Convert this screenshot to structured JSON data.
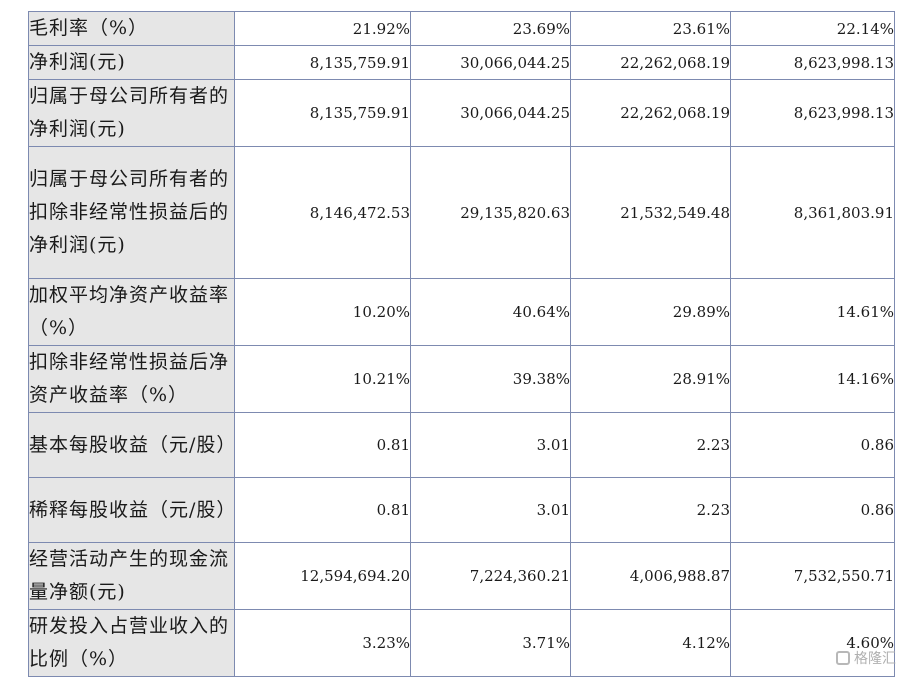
{
  "rows": [
    {
      "label": "毛利率（%）",
      "values": [
        "21.92%",
        "23.69%",
        "23.61%",
        "22.14%"
      ]
    },
    {
      "label": "净利润(元)",
      "values": [
        "8,135,759.91",
        "30,066,044.25",
        "22,262,068.19",
        "8,623,998.13"
      ]
    },
    {
      "label": "归属于母公司所有者的净利润(元)",
      "values": [
        "8,135,759.91",
        "30,066,044.25",
        "22,262,068.19",
        "8,623,998.13"
      ]
    },
    {
      "label": "归属于母公司所有者的扣除非经常性损益后的净利润(元)",
      "values": [
        "8,146,472.53",
        "29,135,820.63",
        "21,532,549.48",
        "8,361,803.91"
      ]
    },
    {
      "label": "加权平均净资产收益率（%）",
      "values": [
        "10.20%",
        "40.64%",
        "29.89%",
        "14.61%"
      ]
    },
    {
      "label": "扣除非经常性损益后净资产收益率（%）",
      "values": [
        "10.21%",
        "39.38%",
        "28.91%",
        "14.16%"
      ]
    },
    {
      "label": "基本每股收益（元/股）",
      "values": [
        "0.81",
        "3.01",
        "2.23",
        "0.86"
      ]
    },
    {
      "label": "稀释每股收益（元/股）",
      "values": [
        "0.81",
        "3.01",
        "2.23",
        "0.86"
      ]
    },
    {
      "label": "经营活动产生的现金流量净额(元)",
      "values": [
        "12,594,694.20",
        "7,224,360.21",
        "4,006,988.87",
        "7,532,550.71"
      ]
    },
    {
      "label": "研发投入占营业收入的比例（%）",
      "values": [
        "3.23%",
        "3.71%",
        "4.12%",
        "4.60%"
      ]
    }
  ],
  "watermark": "格隆汇"
}
